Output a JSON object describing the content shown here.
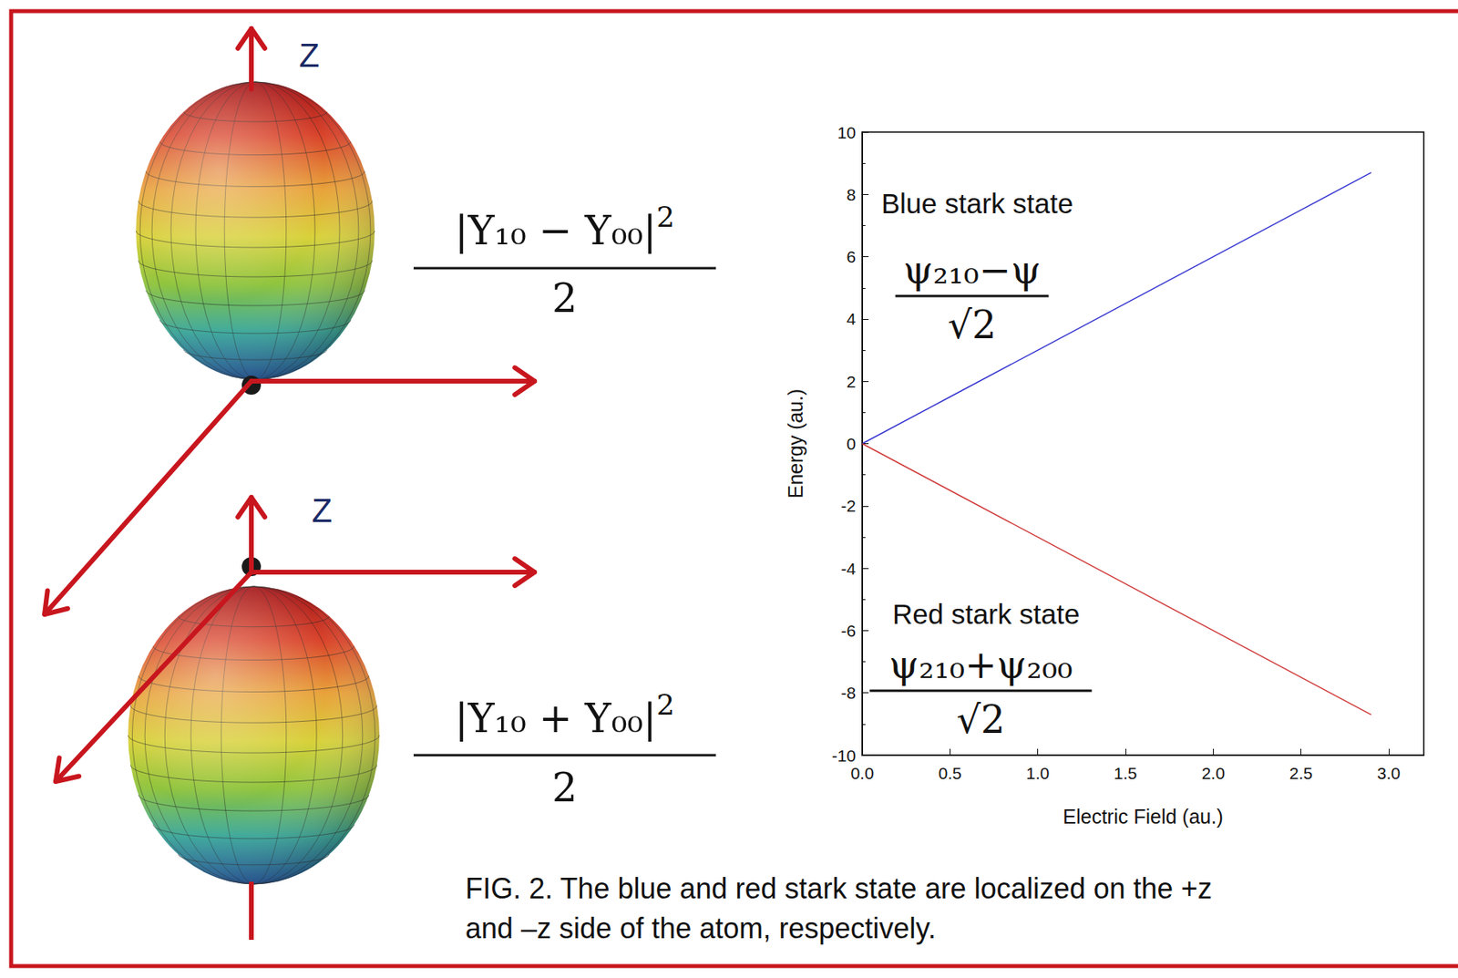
{
  "chart_data": {
    "type": "line",
    "x_label": "Electric Field (au.)",
    "y_label": "Energy (au.)",
    "x": [
      0,
      0.5,
      1.0,
      1.5,
      2.0,
      2.5,
      2.9
    ],
    "series": [
      {
        "name": "Blue stark state",
        "color": "#3535d0",
        "values": [
          0,
          1.5,
          3.0,
          4.5,
          6.0,
          7.5,
          8.7
        ],
        "state": {
          "numerator": "ψ₂₁₀−ψ",
          "denominator": "√2"
        }
      },
      {
        "name": "Red stark state",
        "color": "#d03a3a",
        "values": [
          0,
          -1.5,
          -3.0,
          -4.5,
          -6.0,
          -7.5,
          -8.7
        ],
        "state": {
          "numerator": "ψ₂₁₀+ψ₂₀₀",
          "denominator": "√2"
        }
      }
    ],
    "xlim": [
      0,
      3.2
    ],
    "xticks": [
      {
        "value": 0,
        "label": "0.0"
      },
      0.5,
      {
        "value": 1,
        "label": "1.0"
      },
      1.5,
      {
        "value": 2,
        "label": "2.0"
      },
      2.5,
      {
        "value": 3,
        "label": "3.0"
      }
    ],
    "ylim": [
      -10,
      10
    ],
    "yticks": [
      -10,
      -8,
      -6,
      -4,
      -2,
      0,
      2,
      4,
      6,
      8,
      10
    ],
    "grid": false
  },
  "diagram": {
    "panels": [
      {
        "axis_label": "Z",
        "formula": {
          "numerator": "|Y₁₀ − Y₀₀|",
          "power": "2",
          "denominator": "2"
        }
      },
      {
        "axis_label": "Z",
        "formula": {
          "numerator": "|Y₁₀ + Y₀₀|",
          "power": "2",
          "denominator": "2"
        }
      }
    ]
  },
  "caption": "FIG. 2. The blue and red stark state are localized on the +z and –z side of the atom, respectively."
}
